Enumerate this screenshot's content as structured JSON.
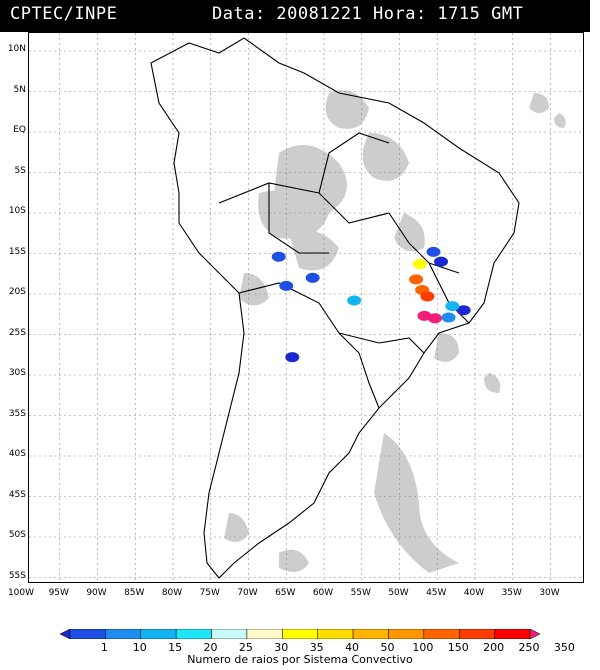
{
  "header": {
    "source": "CPTEC/INPE",
    "date_line": "Data: 20081221 Hora: 1715 GMT"
  },
  "map": {
    "lat_labels": [
      "10N",
      "5N",
      "EQ",
      "5S",
      "10S",
      "15S",
      "20S",
      "25S",
      "30S",
      "35S",
      "40S",
      "45S",
      "50S",
      "55S"
    ],
    "lon_labels": [
      "100W",
      "95W",
      "90W",
      "85W",
      "80W",
      "75W",
      "70W",
      "65W",
      "60W",
      "55W",
      "50W",
      "45W",
      "40W",
      "35W",
      "30W"
    ],
    "cloud_color": "#c8c8c8",
    "border_color": "#000000",
    "grid": "dotted"
  },
  "colorbar": {
    "title": "Numero de raios por Sistema Convectivo",
    "labels": [
      "1",
      "10",
      "15",
      "20",
      "25",
      "30",
      "35",
      "40",
      "50",
      "100",
      "150",
      "200",
      "250",
      "350"
    ],
    "colors": [
      "#1e28d2",
      "#1e50e6",
      "#1e8cf0",
      "#14b4f0",
      "#1ee6f5",
      "#c8fafa",
      "#fffac8",
      "#ffff00",
      "#ffdc00",
      "#ffb400",
      "#ff9600",
      "#ff6400",
      "#ff3c00",
      "#ff0000",
      "#f01e78"
    ]
  },
  "systems": [
    {
      "lat": -14.8,
      "lon": -45.5,
      "color_index": 1
    },
    {
      "lat": -16.3,
      "lon": -47.3,
      "color_index": 7
    },
    {
      "lat": -16.0,
      "lon": -44.5,
      "color_index": 0
    },
    {
      "lat": -18.2,
      "lon": -47.8,
      "color_index": 11
    },
    {
      "lat": -19.5,
      "lon": -47.0,
      "color_index": 11
    },
    {
      "lat": -20.3,
      "lon": -46.3,
      "color_index": 12
    },
    {
      "lat": -23.0,
      "lon": -45.3,
      "color_index": 14
    },
    {
      "lat": -22.7,
      "lon": -46.7,
      "color_index": 14
    },
    {
      "lat": -20.8,
      "lon": -56.0,
      "color_index": 3
    },
    {
      "lat": -19.0,
      "lon": -65.0,
      "color_index": 1
    },
    {
      "lat": -15.4,
      "lon": -66.0,
      "color_index": 1
    },
    {
      "lat": -18.0,
      "lon": -61.5,
      "color_index": 1
    },
    {
      "lat": -27.8,
      "lon": -64.2,
      "color_index": 0
    },
    {
      "lat": -22.0,
      "lon": -41.5,
      "color_index": 0
    },
    {
      "lat": -21.5,
      "lon": -43.0,
      "color_index": 3
    },
    {
      "lat": -22.9,
      "lon": -43.5,
      "color_index": 2
    }
  ]
}
